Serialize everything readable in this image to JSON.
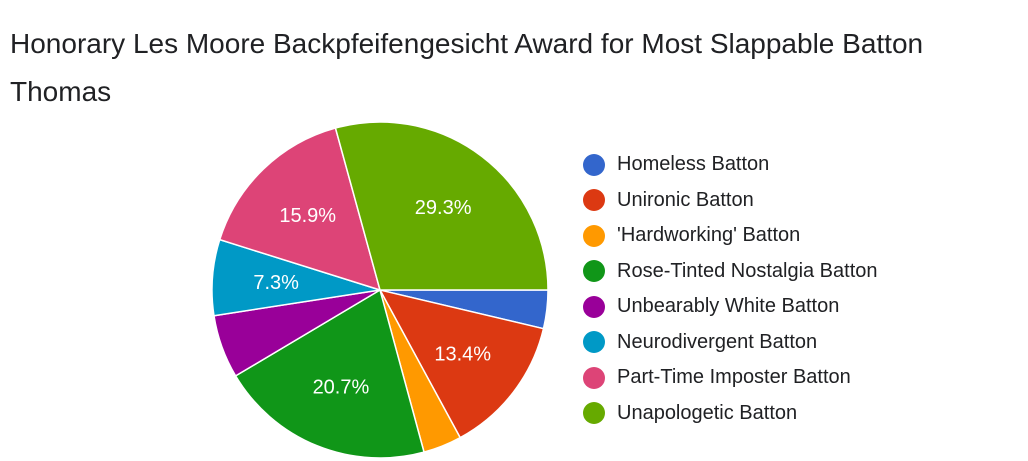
{
  "chart_data": {
    "type": "pie",
    "title": "Honorary Les Moore Backpfeifengesicht Award for Most Slappable Batton Thomas",
    "legend_position": "right",
    "slices": [
      {
        "label": "Homeless Batton",
        "value": 3.7,
        "color": "#3366cc",
        "data_label": ""
      },
      {
        "label": "Unironic Batton",
        "value": 13.4,
        "color": "#dc3912",
        "data_label": "13.4%"
      },
      {
        "label": "'Hardworking' Batton",
        "value": 3.7,
        "color": "#ff9900",
        "data_label": ""
      },
      {
        "label": "Rose-Tinted Nostalgia Batton",
        "value": 20.7,
        "color": "#109618",
        "data_label": "20.7%"
      },
      {
        "label": "Unbearably White Batton",
        "value": 6.1,
        "color": "#990099",
        "data_label": ""
      },
      {
        "label": "Neurodivergent Batton",
        "value": 7.3,
        "color": "#0099c6",
        "data_label": "7.3%"
      },
      {
        "label": "Part-Time Imposter Batton",
        "value": 15.9,
        "color": "#dd4477",
        "data_label": "15.9%"
      },
      {
        "label": "Unapologetic Batton",
        "value": 29.3,
        "color": "#66aa00",
        "data_label": "29.3%"
      }
    ]
  }
}
